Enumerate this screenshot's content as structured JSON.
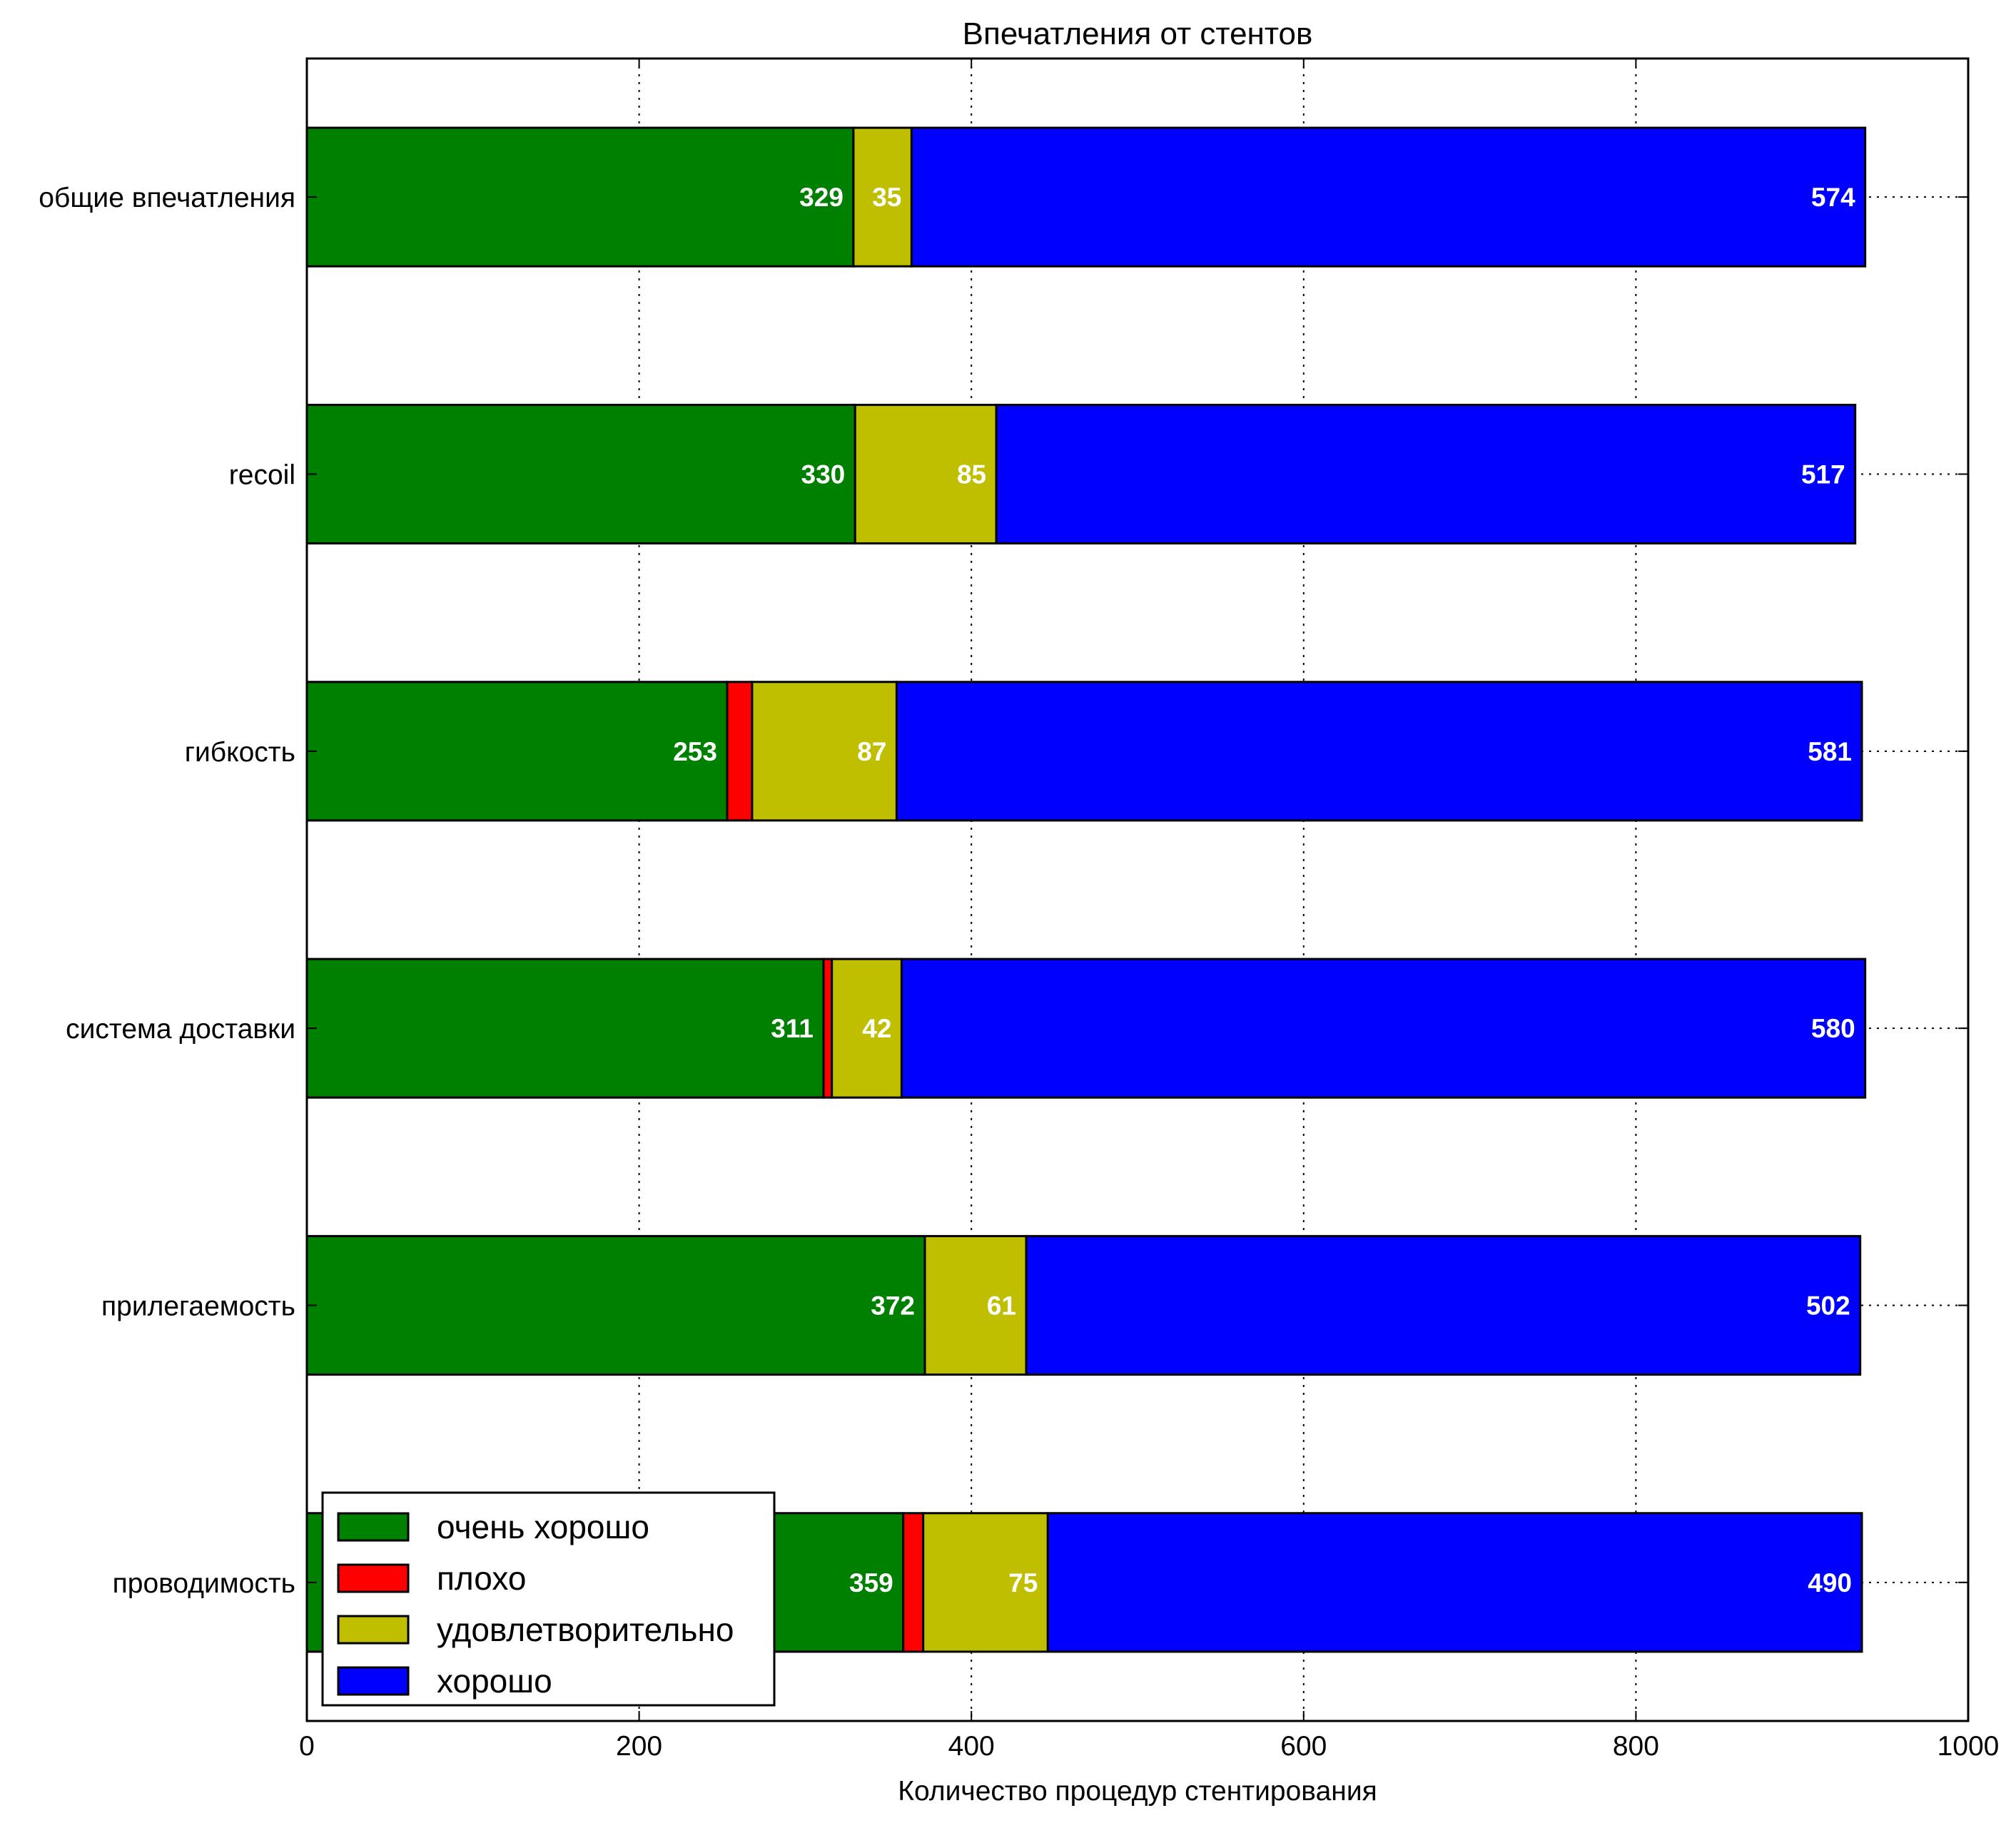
{
  "chart_data": {
    "type": "bar",
    "orientation": "horizontal",
    "stacked": true,
    "title": "Впечатления от стентов",
    "xlabel": "Количество процедур стентирования",
    "ylabel": "",
    "xlim": [
      0,
      1000
    ],
    "xticks": [
      0,
      200,
      400,
      600,
      800,
      1000
    ],
    "grid": true,
    "legend_position": "bottom-left",
    "categories": [
      "общие впечатления",
      "recoil",
      "гибкость",
      "система доставки",
      "прилегаемость",
      "проводимость"
    ],
    "series": [
      {
        "name": "очень хорошо",
        "color": "#008000",
        "values": [
          329,
          330,
          253,
          311,
          372,
          359
        ],
        "labels": [
          "329",
          "330",
          "253",
          "311",
          "372",
          "359"
        ]
      },
      {
        "name": "плохо",
        "color": "#ff0000",
        "values": [
          0,
          0,
          15,
          5,
          0,
          12
        ],
        "labels": [
          "",
          "",
          "",
          "",
          "",
          ""
        ]
      },
      {
        "name": "удовлетворительно",
        "color": "#bfbf00",
        "values": [
          35,
          85,
          87,
          42,
          61,
          75
        ],
        "labels": [
          "35",
          "85",
          "87",
          "42",
          "61",
          "75"
        ]
      },
      {
        "name": "хорошо",
        "color": "#0000ff",
        "values": [
          574,
          517,
          581,
          580,
          502,
          490
        ],
        "labels": [
          "574",
          "517",
          "581",
          "580",
          "502",
          "490"
        ]
      }
    ]
  }
}
